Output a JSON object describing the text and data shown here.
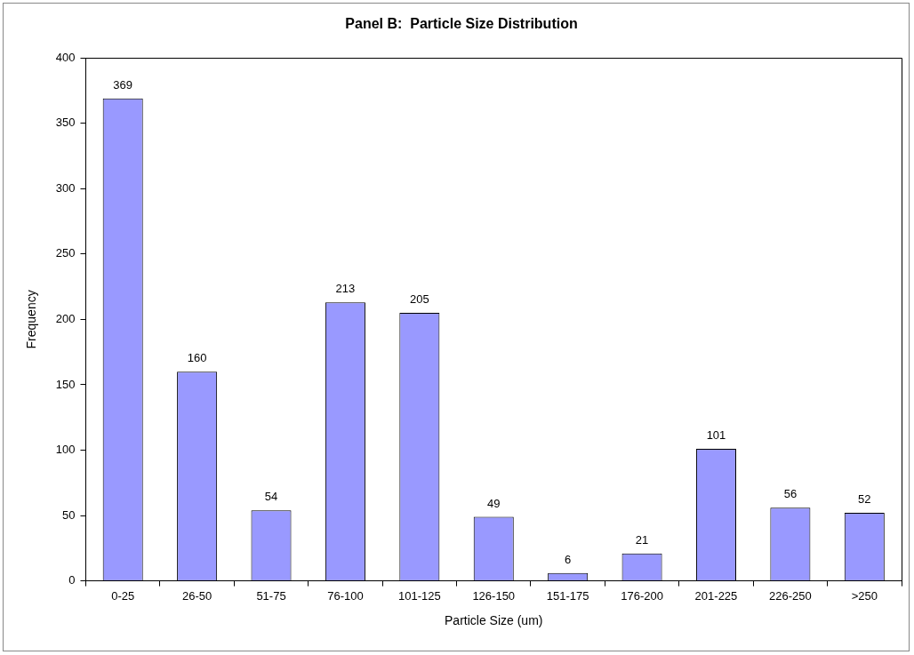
{
  "chart_data": {
    "type": "bar",
    "title": "Panel B:  Particle Size Distribution",
    "xlabel": "Particle Size (um)",
    "ylabel": "Frequency",
    "categories": [
      "0-25",
      "26-50",
      "51-75",
      "76-100",
      "101-125",
      "126-150",
      "151-175",
      "176-200",
      "201-225",
      "226-250",
      ">250"
    ],
    "values": [
      369,
      160,
      54,
      213,
      205,
      49,
      6,
      21,
      101,
      56,
      52
    ],
    "color": "#9999ff",
    "ylim": [
      0,
      400
    ],
    "yticks": [
      0,
      50,
      100,
      150,
      200,
      250,
      300,
      350,
      400
    ],
    "grid": false,
    "legend": false,
    "data_labels": true
  }
}
